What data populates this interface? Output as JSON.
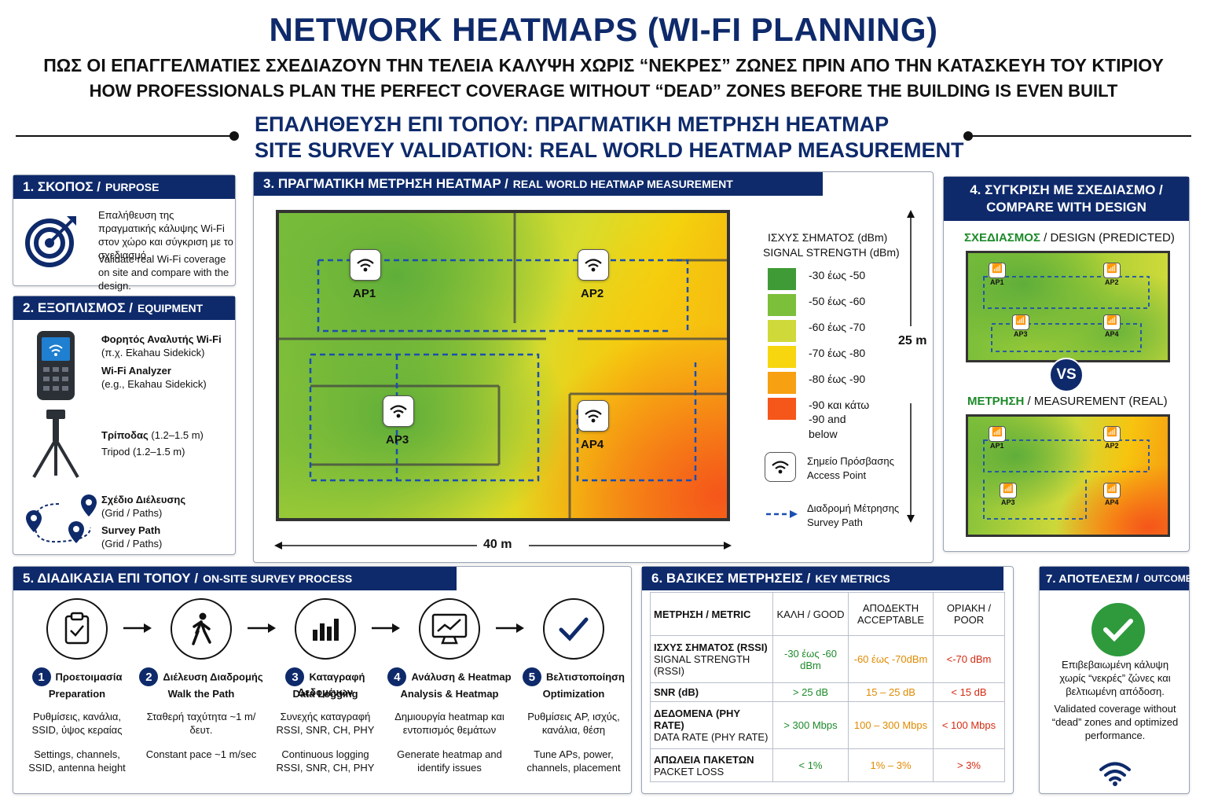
{
  "header": {
    "title": "NETWORK HEATMAPS (WI-FI PLANNING)",
    "subtitle_gr": "ΠΩΣ ΟΙ ΕΠΑΓΓΕΛΜΑΤΙΕΣ ΣΧΕΔΙΑΖΟΥΝ ΤΗΝ ΤΕΛΕΙΑ ΚΑΛΥΨΗ ΧΩΡΙΣ “ΝΕΚΡΕΣ” ΖΩΝΕΣ ΠΡΙΝ ΑΠΟ ΤΗΝ ΚΑΤΑΣΚΕΥΗ ΤΟΥ ΚΤΙΡΙΟΥ",
    "subtitle_en": "HOW PROFESSIONALS PLAN THE PERFECT COVERAGE WITHOUT “DEAD” ZONES BEFORE THE BUILDING IS EVEN BUILT",
    "section_gr": "ΕΠΑΛΗΘΕΥΣΗ ΕΠΙ ΤΟΠΟΥ: ΠΡΑΓΜΑΤΙΚΗ ΜΕΤΡΗΣΗ HEATMAP",
    "section_en": "SITE SURVEY VALIDATION: REAL WORLD HEATMAP MEASUREMENT"
  },
  "purpose": {
    "title_gr": "1. ΣΚΟΠΟΣ /",
    "title_en": "PURPOSE",
    "text_gr": "Επαλήθευση της πραγματικής κάλυψης Wi-Fi στον χώρο και σύγκριση με το σχεδιασμό.",
    "text_en": "Validate real Wi-Fi coverage on site and compare with the design."
  },
  "equipment": {
    "title_gr": "2. ΕΞΟΠΛΙΣΜΟΣ /",
    "title_en": "EQUIPMENT",
    "items": [
      {
        "gr": "Φορητός Αναλυτής Wi-Fi",
        "gr2": "(π.χ. Ekahau Sidekick)",
        "en": "Wi-Fi Analyzer",
        "en2": "(e.g., Ekahau Sidekick)"
      },
      {
        "gr": "Τρίποδας",
        "gr2": "(1.2–1.5 m)",
        "en": "Tripod (1.2–1.5 m)",
        "en2": ""
      },
      {
        "gr": "Σχέδιο Διέλευσης",
        "gr2": "(Grid / Paths)",
        "en": "Survey Path",
        "en2": "(Grid / Paths)"
      }
    ]
  },
  "heatmap": {
    "title_gr": "3. ΠΡΑΓΜΑΤΙΚΗ ΜΕΤΡΗΣΗ HEATMAP /",
    "title_en": "REAL WORLD HEATMAP MEASUREMENT",
    "aps": [
      "AP1",
      "AP2",
      "AP3",
      "AP4"
    ],
    "width_label": "40 m",
    "height_label": "25 m",
    "legend_title_gr": "ΙΣΧΥΣ ΣΗΜΑΤΟΣ (dBm)",
    "legend_title_en": "SIGNAL STRENGTH (dBm)",
    "legend": [
      {
        "label": "-30  έως  -50",
        "label2": "",
        "color": "#3f9b35"
      },
      {
        "label": "-50  έως  -60",
        "label2": "",
        "color": "#7cbf3a"
      },
      {
        "label": "-60  έως  -70",
        "label2": "",
        "color": "#cfd93a"
      },
      {
        "label": "-70  έως  -80",
        "label2": "",
        "color": "#f7d60f"
      },
      {
        "label": "-80  έως  -90",
        "label2": "",
        "color": "#f7a012"
      },
      {
        "label": "-90  και κάτω",
        "label2": "-90 and below",
        "color": "#f5561a"
      }
    ],
    "ap_legend_gr": "Σημείο Πρόσβασης",
    "ap_legend_en": "Access Point",
    "path_legend_gr": "Διαδρομή Μέτρησης",
    "path_legend_en": "Survey Path"
  },
  "compare": {
    "title": "4. ΣΥΓΚΡΙΣΗ ΜΕ ΣΧΕΔΙΑΣΜΟ /",
    "title2": "COMPARE WITH DESIGN",
    "design_gr": "ΣΧΕΔΙΑΣΜΟΣ",
    "design_en": "/ DESIGN (PREDICTED)",
    "vs": "VS",
    "meas_gr": "ΜΕΤΡΗΣΗ",
    "meas_en": "/ MEASUREMENT (REAL)",
    "aps": [
      "AP1",
      "AP2",
      "AP3",
      "AP4"
    ]
  },
  "process": {
    "title_gr": "5. ΔΙΑΔΙΚΑΣΙΑ ΕΠΙ ΤΟΠΟΥ /",
    "title_en": "ON-SITE SURVEY PROCESS",
    "steps": [
      {
        "n": "1",
        "gr": "Προετοιμασία",
        "en": "Preparation",
        "d_gr": "Ρυθμίσεις, κανάλια, SSID, ύψος κεραίας",
        "d_en": "Settings, channels, SSID, antenna height"
      },
      {
        "n": "2",
        "gr": "Διέλευση Διαδρομής",
        "en": "Walk the Path",
        "d_gr": "Σταθερή ταχύτητα ~1 m/δευτ.",
        "d_en": "Constant pace ~1 m/sec"
      },
      {
        "n": "3",
        "gr": "Καταγραφή Δεδομένων",
        "en": "Data Logging",
        "d_gr": "Συνεχής καταγραφή RSSI, SNR, CH, PHY",
        "d_en": "Continuous logging RSSI, SNR, CH, PHY"
      },
      {
        "n": "4",
        "gr": "Ανάλυση & Heatmap",
        "en": "Analysis & Heatmap",
        "d_gr": "Δημιουργία heatmap και εντοπισμός θεμάτων",
        "d_en": "Generate heatmap and identify issues"
      },
      {
        "n": "5",
        "gr": "Βελτιστοποίηση",
        "en": "Optimization",
        "d_gr": "Ρυθμίσεις AP, ισχύς, κανάλια, θέση",
        "d_en": "Tune APs, power, channels, placement"
      }
    ]
  },
  "metrics": {
    "title_gr": "6. ΒΑΣΙΚΕΣ ΜΕΤΡΗΣΕΙΣ /",
    "title_en": "KEY METRICS",
    "headers": [
      "ΜΕΤΡΗΣΗ / METRIC",
      "ΚΑΛΗ / GOOD",
      "ΑΠΟΔΕΚΤΗ ACCEPTABLE",
      "ΟΡΙΑΚΗ / POOR"
    ],
    "rows": [
      {
        "gr": "ΙΣΧΥΣ ΣΗΜΑΤΟΣ (RSSI)",
        "en": "SIGNAL STRENGTH (RSSI)",
        "good": "-30 έως -60 dBm",
        "acc": "-60 έως -70dBm",
        "poor": "<-70 dBm"
      },
      {
        "gr": "SNR (dB)",
        "en": "",
        "good": "> 25 dB",
        "acc": "15 – 25 dB",
        "poor": "< 15 dB"
      },
      {
        "gr": "ΔΕΔΟΜΕΝΑ (PHY RATE)",
        "en": "DATA RATE (PHY RATE)",
        "good": "> 300 Mbps",
        "acc": "100 – 300 Mbps",
        "poor": "< 100 Mbps"
      },
      {
        "gr": "ΑΠΩΛΕΙΑ ΠΑΚΕΤΩΝ",
        "en": "PACKET LOSS",
        "good": "< 1%",
        "acc": "1% – 3%",
        "poor": "> 3%"
      }
    ]
  },
  "outcome": {
    "title_gr": "7. ΑΠΟΤΕΛΕΣΜ /",
    "title_en": "OUTCOME",
    "text_gr": "Επιβεβαιωμένη κάλυψη χωρίς “νεκρές” ζώνες και βελτιωμένη απόδοση.",
    "text_en": "Validated coverage without “dead” zones and optimized performance."
  }
}
